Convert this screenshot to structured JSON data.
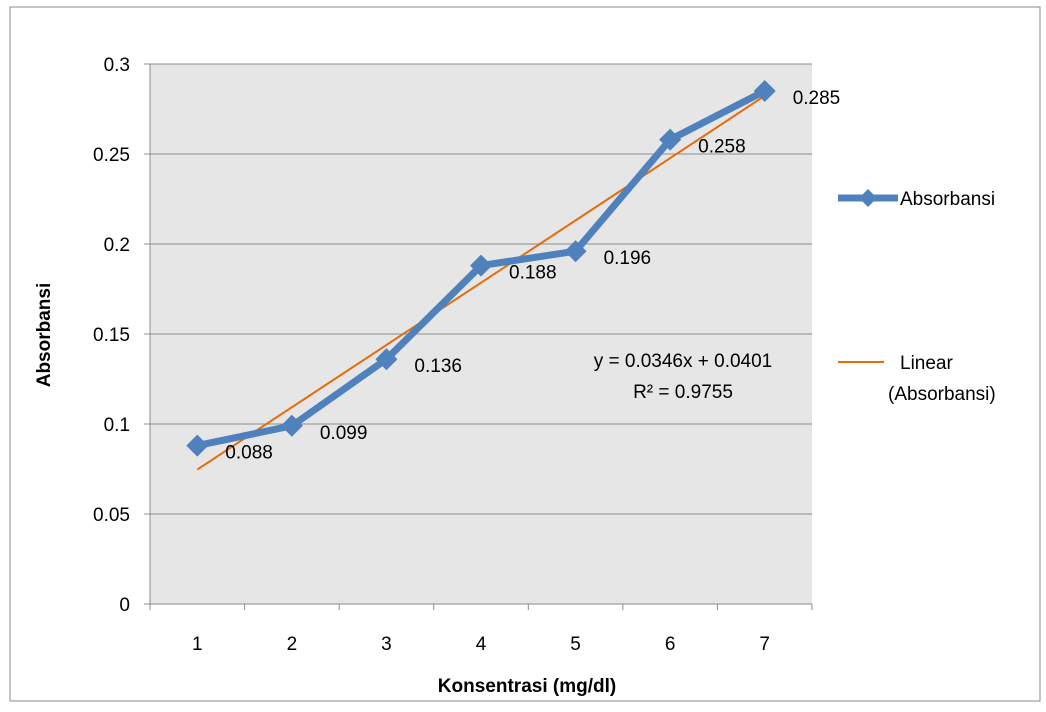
{
  "chart_data": {
    "type": "line",
    "title": "",
    "xlabel": "Konsentrasi (mg/dl)",
    "ylabel": "Absorbansi",
    "categories": [
      "1",
      "2",
      "3",
      "4",
      "5",
      "6",
      "7"
    ],
    "x": [
      1,
      2,
      3,
      4,
      5,
      6,
      7
    ],
    "series": [
      {
        "name": "Absorbansi",
        "values": [
          0.088,
          0.099,
          0.136,
          0.188,
          0.196,
          0.258,
          0.285
        ],
        "data_labels": [
          "0.088",
          "0.099",
          "0.136",
          "0.188",
          "0.196",
          "0.258",
          "0.285"
        ],
        "color": "#4F81BD",
        "marker": "diamond"
      }
    ],
    "trendline": {
      "name": "Linear (Absorbansi)",
      "legend_lines": [
        "Linear",
        "(Absorbansi)"
      ],
      "type": "linear",
      "slope": 0.0346,
      "intercept": 0.0401,
      "equation": "y = 0.0346x + 0.0401",
      "r_squared": "R² = 0.9755",
      "color": "#E46C0A"
    },
    "ylim": [
      0,
      0.3
    ],
    "yticks": [
      0,
      0.05,
      0.1,
      0.15,
      0.2,
      0.25,
      0.3
    ],
    "ytick_labels": [
      "0",
      "0.05",
      "0.1",
      "0.15",
      "0.2",
      "0.25",
      "0.3"
    ],
    "grid": true,
    "plot_background": "#E6E6E6",
    "legend_position": "right"
  }
}
